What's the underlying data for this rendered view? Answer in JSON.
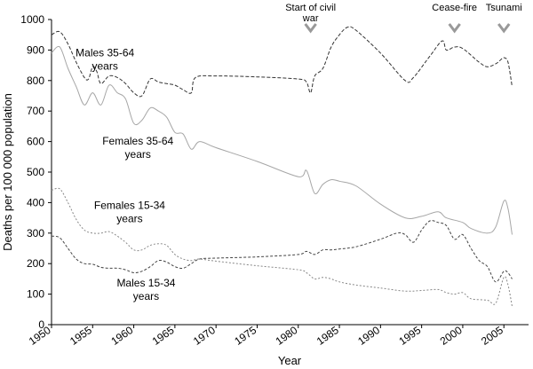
{
  "chart_data": {
    "type": "line",
    "title": "",
    "xlabel": "Year",
    "ylabel": "Deaths per 100 000 population",
    "xlim": [
      1950,
      2008
    ],
    "ylim": [
      0,
      1000
    ],
    "x_ticks": [
      1950,
      1955,
      1960,
      1965,
      1970,
      1975,
      1980,
      1985,
      1990,
      1995,
      2000,
      2005
    ],
    "y_ticks": [
      0,
      100,
      200,
      300,
      400,
      500,
      600,
      700,
      800,
      900,
      1000
    ],
    "grid": false,
    "legend": "none",
    "series": [
      {
        "name": "Males 35-64 years",
        "color": "#333333",
        "dash": "4,2",
        "points": [
          [
            1950,
            950
          ],
          [
            1951,
            960
          ],
          [
            1952,
            920
          ],
          [
            1953,
            860
          ],
          [
            1954,
            810
          ],
          [
            1954.5,
            805
          ],
          [
            1955,
            845
          ],
          [
            1955.5,
            830
          ],
          [
            1956,
            790
          ],
          [
            1957,
            815
          ],
          [
            1958,
            810
          ],
          [
            1959,
            790
          ],
          [
            1960,
            760
          ],
          [
            1961,
            750
          ],
          [
            1962,
            805
          ],
          [
            1963,
            795
          ],
          [
            1964,
            790
          ],
          [
            1965,
            785
          ],
          [
            1966,
            770
          ],
          [
            1967,
            760
          ],
          [
            1967.5,
            810
          ],
          [
            1970,
            815
          ],
          [
            1975,
            812
          ],
          [
            1980,
            805
          ],
          [
            1981,
            795
          ],
          [
            1981.5,
            760
          ],
          [
            1982,
            815
          ],
          [
            1983,
            840
          ],
          [
            1984,
            910
          ],
          [
            1985,
            950
          ],
          [
            1986,
            975
          ],
          [
            1987,
            965
          ],
          [
            1990,
            890
          ],
          [
            1993,
            800
          ],
          [
            1994,
            810
          ],
          [
            1996,
            880
          ],
          [
            1997.5,
            930
          ],
          [
            1998,
            900
          ],
          [
            1999,
            910
          ],
          [
            2000,
            905
          ],
          [
            2002,
            860
          ],
          [
            2003,
            845
          ],
          [
            2004,
            855
          ],
          [
            2004.5,
            865
          ],
          [
            2005,
            875
          ],
          [
            2005.5,
            860
          ],
          [
            2006,
            780
          ]
        ]
      },
      {
        "name": "Females 35-64 years",
        "color": "#a6a6a6",
        "dash": "",
        "points": [
          [
            1950,
            890
          ],
          [
            1951,
            910
          ],
          [
            1952,
            840
          ],
          [
            1953,
            780
          ],
          [
            1954,
            720
          ],
          [
            1955,
            760
          ],
          [
            1956,
            720
          ],
          [
            1957,
            785
          ],
          [
            1958,
            760
          ],
          [
            1959,
            740
          ],
          [
            1960,
            660
          ],
          [
            1961,
            670
          ],
          [
            1962,
            710
          ],
          [
            1963,
            700
          ],
          [
            1964,
            680
          ],
          [
            1965,
            630
          ],
          [
            1966,
            625
          ],
          [
            1967,
            575
          ],
          [
            1968,
            600
          ],
          [
            1970,
            580
          ],
          [
            1975,
            535
          ],
          [
            1980,
            485
          ],
          [
            1981,
            505
          ],
          [
            1982,
            430
          ],
          [
            1983,
            460
          ],
          [
            1984,
            475
          ],
          [
            1985,
            470
          ],
          [
            1987,
            455
          ],
          [
            1990,
            395
          ],
          [
            1993,
            350
          ],
          [
            1995,
            355
          ],
          [
            1997,
            370
          ],
          [
            1998,
            350
          ],
          [
            2000,
            335
          ],
          [
            2001,
            315
          ],
          [
            2003,
            300
          ],
          [
            2004,
            320
          ],
          [
            2005,
            405
          ],
          [
            2005.5,
            380
          ],
          [
            2006,
            295
          ]
        ]
      },
      {
        "name": "Females 15-34 years",
        "color": "#888888",
        "dash": "2,2",
        "points": [
          [
            1950,
            440
          ],
          [
            1951,
            445
          ],
          [
            1952,
            400
          ],
          [
            1953,
            345
          ],
          [
            1954,
            310
          ],
          [
            1955,
            300
          ],
          [
            1956,
            300
          ],
          [
            1957,
            305
          ],
          [
            1958,
            290
          ],
          [
            1959,
            270
          ],
          [
            1960,
            245
          ],
          [
            1961,
            245
          ],
          [
            1962,
            260
          ],
          [
            1963,
            265
          ],
          [
            1964,
            260
          ],
          [
            1965,
            230
          ],
          [
            1966,
            215
          ],
          [
            1967,
            210
          ],
          [
            1968,
            215
          ],
          [
            1970,
            208
          ],
          [
            1975,
            193
          ],
          [
            1980,
            180
          ],
          [
            1981,
            170
          ],
          [
            1982,
            150
          ],
          [
            1983,
            155
          ],
          [
            1984,
            150
          ],
          [
            1985,
            140
          ],
          [
            1987,
            130
          ],
          [
            1990,
            120
          ],
          [
            1993,
            110
          ],
          [
            1995,
            112
          ],
          [
            1997,
            115
          ],
          [
            1998,
            105
          ],
          [
            1999,
            100
          ],
          [
            2000,
            105
          ],
          [
            2001,
            85
          ],
          [
            2003,
            80
          ],
          [
            2004,
            70
          ],
          [
            2005,
            155
          ],
          [
            2005.5,
            130
          ],
          [
            2006,
            60
          ]
        ]
      },
      {
        "name": "Males 15-34 years",
        "color": "#444444",
        "dash": "3,2",
        "points": [
          [
            1950,
            290
          ],
          [
            1951,
            285
          ],
          [
            1952,
            250
          ],
          [
            1953,
            215
          ],
          [
            1954,
            200
          ],
          [
            1955,
            198
          ],
          [
            1956,
            188
          ],
          [
            1957,
            185
          ],
          [
            1958,
            185
          ],
          [
            1959,
            180
          ],
          [
            1960,
            170
          ],
          [
            1961,
            175
          ],
          [
            1962,
            190
          ],
          [
            1963,
            210
          ],
          [
            1964,
            205
          ],
          [
            1965,
            190
          ],
          [
            1966,
            185
          ],
          [
            1967,
            200
          ],
          [
            1968,
            215
          ],
          [
            1970,
            218
          ],
          [
            1975,
            222
          ],
          [
            1980,
            230
          ],
          [
            1981,
            240
          ],
          [
            1982,
            230
          ],
          [
            1983,
            245
          ],
          [
            1984,
            245
          ],
          [
            1985,
            248
          ],
          [
            1987,
            255
          ],
          [
            1990,
            280
          ],
          [
            1992,
            300
          ],
          [
            1993,
            295
          ],
          [
            1994,
            270
          ],
          [
            1995,
            310
          ],
          [
            1996,
            340
          ],
          [
            1997,
            335
          ],
          [
            1998,
            325
          ],
          [
            1999,
            280
          ],
          [
            2000,
            295
          ],
          [
            2001,
            250
          ],
          [
            2002,
            210
          ],
          [
            2003,
            190
          ],
          [
            2004,
            140
          ],
          [
            2005,
            175
          ],
          [
            2005.5,
            170
          ],
          [
            2006,
            150
          ]
        ]
      }
    ],
    "series_labels": [
      {
        "lines": [
          "Males 35-64",
          "years"
        ],
        "at": [
          1956.5,
          880
        ]
      },
      {
        "lines": [
          "Females 35-64",
          "years"
        ],
        "at": [
          1960.5,
          590
        ]
      },
      {
        "lines": [
          "Females 15-34",
          "years"
        ],
        "at": [
          1959.5,
          380
        ]
      },
      {
        "lines": [
          "Males 15-34",
          "years"
        ],
        "at": [
          1961.5,
          125
        ]
      }
    ],
    "annotations": [
      {
        "lines": [
          "Start of civil",
          "war"
        ],
        "year": 1981.5
      },
      {
        "lines": [
          "Cease-fire"
        ],
        "year": 1999
      },
      {
        "lines": [
          "Tsunami"
        ],
        "year": 2005
      }
    ]
  }
}
